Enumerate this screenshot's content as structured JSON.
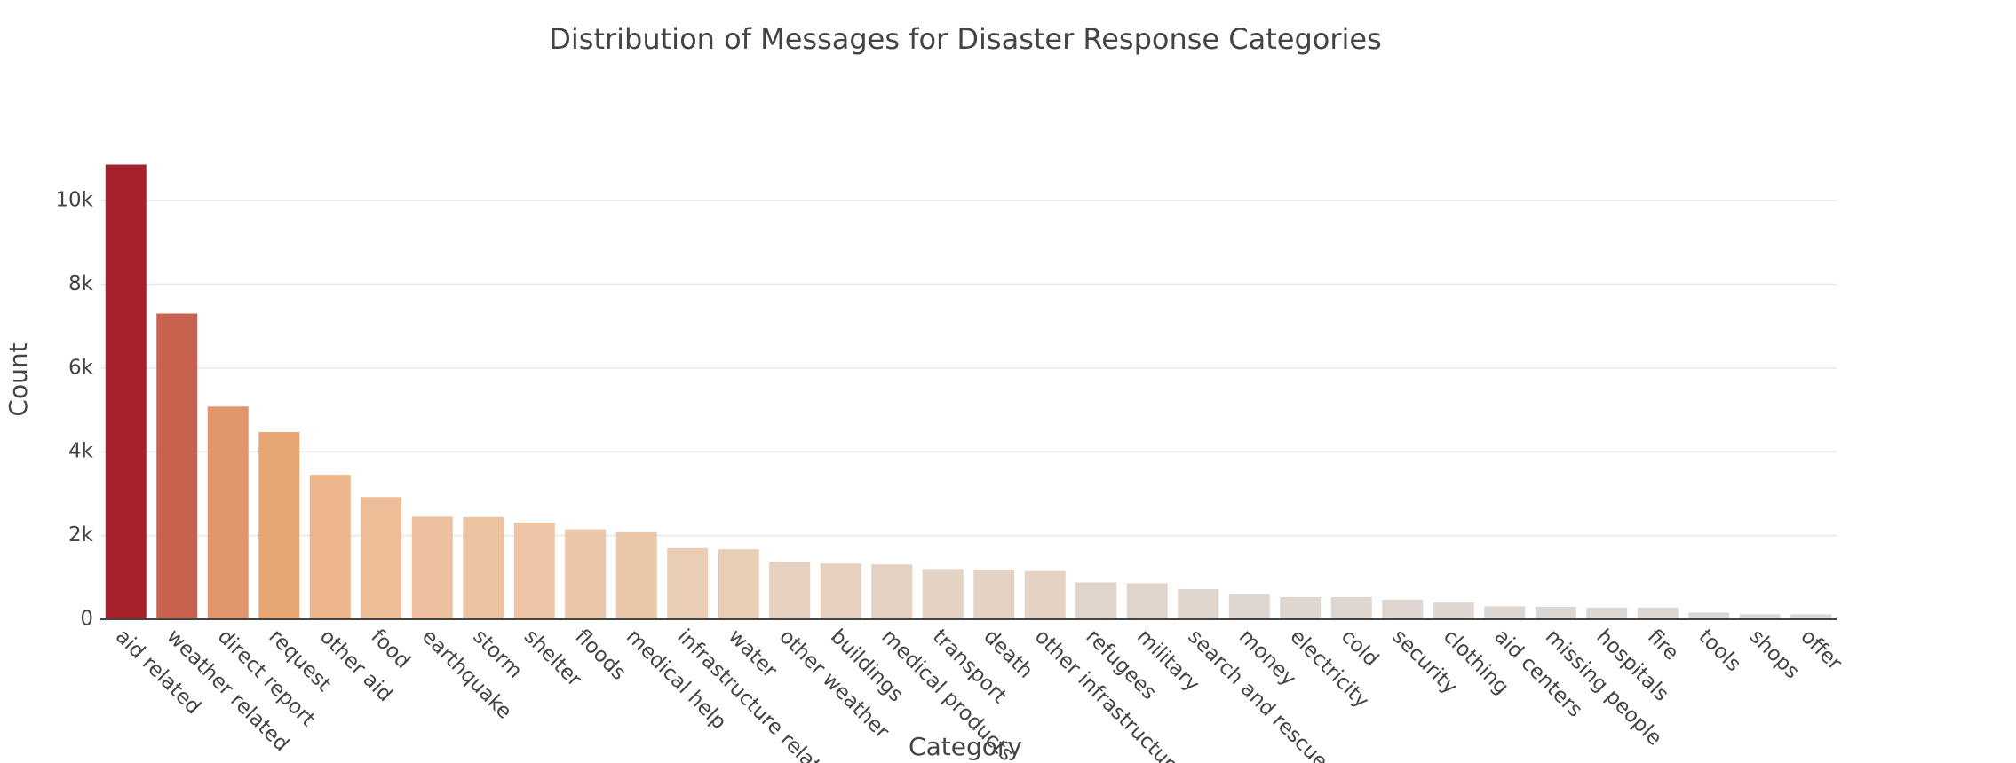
{
  "chart_data": {
    "type": "bar",
    "title": "Distribution of Messages for Disaster Response Categories",
    "x_label": "Category",
    "y_label": "Count",
    "categories": [
      "aid related",
      "weather related",
      "direct report",
      "request",
      "other aid",
      "food",
      "earthquake",
      "storm",
      "shelter",
      "floods",
      "medical help",
      "infrastructure related",
      "water",
      "other weather",
      "buildings",
      "medical products",
      "transport",
      "death",
      "other infrastructure",
      "refugees",
      "military",
      "search and rescue",
      "money",
      "electricity",
      "cold",
      "security",
      "clothing",
      "aid centers",
      "missing people",
      "hospitals",
      "fire",
      "tools",
      "shops",
      "offer"
    ],
    "values": [
      10860,
      7300,
      5080,
      4470,
      3450,
      2920,
      2450,
      2440,
      2310,
      2150,
      2080,
      1700,
      1670,
      1370,
      1330,
      1310,
      1200,
      1190,
      1150,
      880,
      860,
      720,
      600,
      530,
      530,
      470,
      400,
      310,
      300,
      280,
      280,
      160,
      120,
      120
    ],
    "colors": [
      "#a5222b",
      "#c9624f",
      "#e0956c",
      "#e8a574",
      "#ecb58b",
      "#edbd98",
      "#edc19f",
      "#edc2a0",
      "#ecc4a4",
      "#ebc6a8",
      "#ebc7aa",
      "#e9cdb5",
      "#e9ceb6",
      "#e6d0bf",
      "#e6d1c0",
      "#e5d1c1",
      "#e4d2c4",
      "#e4d2c4",
      "#e4d3c5",
      "#e1d4cb",
      "#e1d4cb",
      "#e0d5cd",
      "#dfd6cf",
      "#dfd6d0",
      "#dfd6d0",
      "#ded6d1",
      "#ded6d2",
      "#ddd7d3",
      "#ddd7d3",
      "#ddd7d4",
      "#ddd7d4",
      "#dcd8d6",
      "#dcd8d6",
      "#dcd8d6"
    ],
    "ylim": [
      0,
      11400
    ],
    "yticks": [
      0,
      {
        "value": 2000,
        "label": "2k"
      },
      {
        "value": 4000,
        "label": "4k"
      },
      {
        "value": 6000,
        "label": "6k"
      },
      {
        "value": 8000,
        "label": "8k"
      },
      {
        "value": 10000,
        "label": "10k"
      }
    ],
    "grid": true
  }
}
